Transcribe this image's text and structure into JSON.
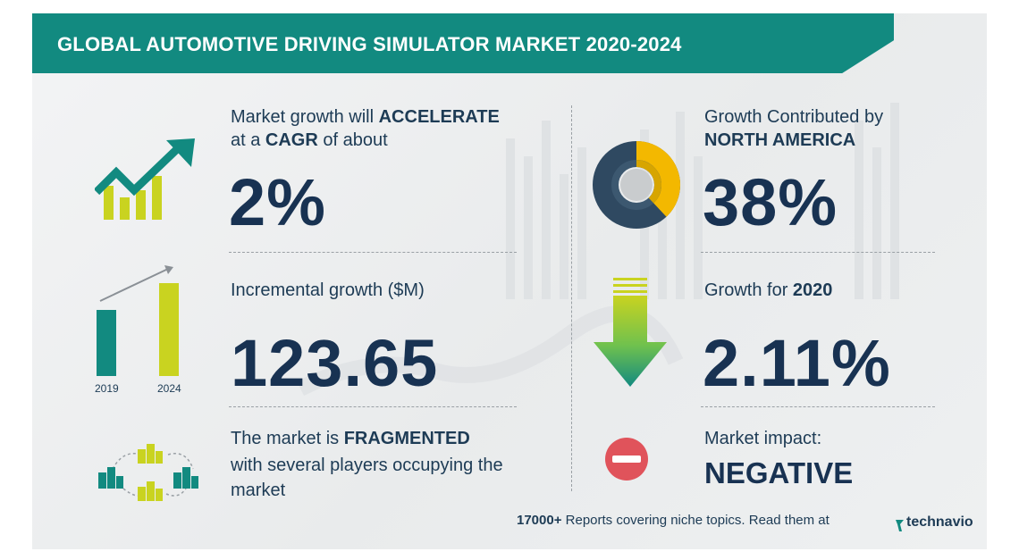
{
  "title": "GLOBAL AUTOMOTIVE DRIVING SIMULATOR MARKET 2020-2024",
  "colors": {
    "teal": "#128a80",
    "yellow": "#c9d320",
    "navy": "#183252",
    "red": "#e0535b",
    "green": "#6fc14e",
    "gold": "#f3b800"
  },
  "cagr": {
    "line1_prefix": "Market growth will ",
    "line1_bold": "ACCELERATE",
    "line2_prefix": "at a ",
    "line2_bold": "CAGR",
    "line2_suffix": " of about",
    "value": "2%",
    "icon": "trend-up-arrow-icon"
  },
  "incremental": {
    "label": "Incremental growth ($M)",
    "value": "123.65",
    "year_start": "2019",
    "year_end": "2024",
    "icon": "bar-growth-icon"
  },
  "fragmented": {
    "line1_prefix": "The market is ",
    "line1_bold": "FRAGMENTED",
    "line2": "with several players occupying the",
    "line3": "market",
    "icon": "buildings-network-icon"
  },
  "region": {
    "line1": "Growth Contributed by",
    "line2": "NORTH AMERICA",
    "value": "38%",
    "share": 38,
    "icon": "donut-chart-icon"
  },
  "yoy": {
    "label_prefix": "Growth for ",
    "label_bold": "2020",
    "value": "2.11%",
    "icon": "down-arrow-icon"
  },
  "impact": {
    "label": "Market impact:",
    "value": "NEGATIVE",
    "icon": "minus-circle-icon"
  },
  "footer": {
    "bold": "17000+",
    "text": " Reports covering niche topics. Read them at",
    "brand": "technavio",
    "brand_icon": "technavio-logo-icon"
  }
}
